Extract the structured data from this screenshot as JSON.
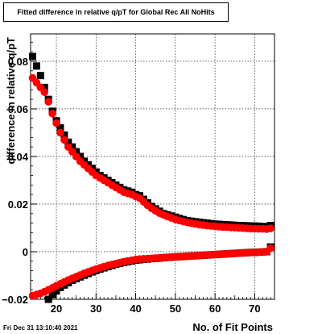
{
  "chart_data": {
    "type": "scatter",
    "title": "Fitted difference in relative q/pT for Global Rec All NoHits",
    "xlabel": "No. of Fit Points",
    "ylabel": "difference in relative q/pT",
    "xlim": [
      13.5,
      75
    ],
    "ylim": [
      -0.02,
      0.0915
    ],
    "x_ticks": [
      20,
      30,
      40,
      50,
      60,
      70
    ],
    "y_ticks": [
      -0.02,
      0,
      0.02,
      0.04,
      0.06,
      0.08
    ],
    "y_tick_labels": [
      "−0.02",
      "0",
      "0.02",
      "0.04",
      "0.06",
      "0.08"
    ],
    "grid": true,
    "series": [
      {
        "color": "#000000",
        "marker": "square",
        "upper_curve": [
          [
            14,
            0.082
          ],
          [
            15,
            0.078
          ],
          [
            16,
            0.074
          ],
          [
            17,
            0.069
          ],
          [
            18,
            0.064
          ],
          [
            19,
            0.059
          ],
          [
            20,
            0.055
          ],
          [
            21,
            0.052
          ],
          [
            22,
            0.049
          ],
          [
            23,
            0.046
          ],
          [
            24,
            0.044
          ],
          [
            25,
            0.042
          ],
          [
            26,
            0.04
          ],
          [
            27,
            0.038
          ],
          [
            28,
            0.0365
          ],
          [
            29,
            0.035
          ],
          [
            30,
            0.0335
          ],
          [
            31,
            0.032
          ],
          [
            32,
            0.031
          ],
          [
            33,
            0.03
          ],
          [
            34,
            0.029
          ],
          [
            35,
            0.028
          ],
          [
            36,
            0.027
          ],
          [
            37,
            0.026
          ],
          [
            38,
            0.0255
          ],
          [
            39,
            0.025
          ],
          [
            40,
            0.024
          ],
          [
            41,
            0.0235
          ],
          [
            42,
            0.022
          ],
          [
            43,
            0.0205
          ],
          [
            44,
            0.019
          ],
          [
            45,
            0.018
          ],
          [
            46,
            0.017
          ],
          [
            47,
            0.016
          ],
          [
            48,
            0.0155
          ],
          [
            49,
            0.015
          ],
          [
            50,
            0.0145
          ],
          [
            51,
            0.014
          ],
          [
            52,
            0.0135
          ],
          [
            53,
            0.013
          ],
          [
            54,
            0.0128
          ],
          [
            55,
            0.0126
          ],
          [
            56,
            0.0124
          ],
          [
            57,
            0.0122
          ],
          [
            58,
            0.012
          ],
          [
            59,
            0.0118
          ],
          [
            60,
            0.0116
          ],
          [
            61,
            0.0115
          ],
          [
            62,
            0.0114
          ],
          [
            63,
            0.0113
          ],
          [
            64,
            0.0112
          ],
          [
            65,
            0.0111
          ],
          [
            66,
            0.011
          ],
          [
            67,
            0.011
          ],
          [
            68,
            0.0109
          ],
          [
            69,
            0.0108
          ],
          [
            70,
            0.0108
          ],
          [
            71,
            0.0107
          ],
          [
            72,
            0.0106
          ],
          [
            73,
            0.0105
          ],
          [
            74,
            0.011
          ]
        ],
        "lower_curve": [
          [
            18,
            -0.02
          ],
          [
            19,
            -0.018
          ],
          [
            20,
            -0.0165
          ],
          [
            21,
            -0.015
          ],
          [
            22,
            -0.014
          ],
          [
            23,
            -0.013
          ],
          [
            24,
            -0.012
          ],
          [
            25,
            -0.0113
          ],
          [
            26,
            -0.0106
          ],
          [
            27,
            -0.0099
          ],
          [
            28,
            -0.0092
          ],
          [
            29,
            -0.0085
          ],
          [
            30,
            -0.0079
          ],
          [
            31,
            -0.0073
          ],
          [
            32,
            -0.0068
          ],
          [
            33,
            -0.0063
          ],
          [
            34,
            -0.0058
          ],
          [
            35,
            -0.0053
          ],
          [
            36,
            -0.0049
          ],
          [
            37,
            -0.0045
          ],
          [
            38,
            -0.0042
          ],
          [
            39,
            -0.0039
          ],
          [
            40,
            -0.0036
          ],
          [
            41,
            -0.0034
          ],
          [
            42,
            -0.0032
          ],
          [
            43,
            -0.0031
          ],
          [
            44,
            -0.0029
          ],
          [
            45,
            -0.0028
          ],
          [
            46,
            -0.0027
          ],
          [
            47,
            -0.0025
          ],
          [
            48,
            -0.0024
          ],
          [
            49,
            -0.0023
          ],
          [
            50,
            -0.0022
          ],
          [
            51,
            -0.0021
          ],
          [
            52,
            -0.002
          ],
          [
            53,
            -0.0019
          ],
          [
            54,
            -0.0018
          ],
          [
            55,
            -0.0017
          ],
          [
            56,
            -0.0016
          ],
          [
            57,
            -0.0015
          ],
          [
            58,
            -0.0014
          ],
          [
            59,
            -0.0013
          ],
          [
            60,
            -0.0012
          ],
          [
            61,
            -0.0011
          ],
          [
            62,
            -0.001
          ],
          [
            63,
            -0.0009
          ],
          [
            64,
            -0.0008
          ],
          [
            65,
            -0.0007
          ],
          [
            66,
            -0.0006
          ],
          [
            67,
            -0.0005
          ],
          [
            68,
            -0.0004
          ],
          [
            69,
            -0.0003
          ],
          [
            70,
            -0.0003
          ],
          [
            71,
            -0.0002
          ],
          [
            72,
            -0.0001
          ],
          [
            73,
            0.0
          ],
          [
            74,
            0.002
          ]
        ]
      },
      {
        "color": "#ff0000",
        "marker": "circle",
        "upper_curve": [
          [
            14,
            0.073
          ],
          [
            15,
            0.071
          ],
          [
            16,
            0.069
          ],
          [
            17,
            0.067
          ],
          [
            18,
            0.063
          ],
          [
            19,
            0.058
          ],
          [
            20,
            0.054
          ],
          [
            21,
            0.05
          ],
          [
            22,
            0.047
          ],
          [
            23,
            0.044
          ],
          [
            24,
            0.042
          ],
          [
            25,
            0.04
          ],
          [
            26,
            0.038
          ],
          [
            27,
            0.0365
          ],
          [
            28,
            0.035
          ],
          [
            29,
            0.0335
          ],
          [
            30,
            0.032
          ],
          [
            31,
            0.031
          ],
          [
            32,
            0.03
          ],
          [
            33,
            0.029
          ],
          [
            34,
            0.028
          ],
          [
            35,
            0.027
          ],
          [
            36,
            0.026
          ],
          [
            37,
            0.025
          ],
          [
            38,
            0.0245
          ],
          [
            39,
            0.024
          ],
          [
            40,
            0.0232
          ],
          [
            41,
            0.0225
          ],
          [
            42,
            0.021
          ],
          [
            43,
            0.0195
          ],
          [
            44,
            0.0182
          ],
          [
            45,
            0.0172
          ],
          [
            46,
            0.0162
          ],
          [
            47,
            0.0155
          ],
          [
            48,
            0.0148
          ],
          [
            49,
            0.0142
          ],
          [
            50,
            0.0136
          ],
          [
            51,
            0.0131
          ],
          [
            52,
            0.0127
          ],
          [
            53,
            0.0123
          ],
          [
            54,
            0.012
          ],
          [
            55,
            0.0117
          ],
          [
            56,
            0.0114
          ],
          [
            57,
            0.0112
          ],
          [
            58,
            0.011
          ],
          [
            59,
            0.0108
          ],
          [
            60,
            0.0107
          ],
          [
            61,
            0.0105
          ],
          [
            62,
            0.0104
          ],
          [
            63,
            0.0103
          ],
          [
            64,
            0.0102
          ],
          [
            65,
            0.0101
          ],
          [
            66,
            0.01
          ],
          [
            67,
            0.0099
          ],
          [
            68,
            0.0098
          ],
          [
            69,
            0.0097
          ],
          [
            70,
            0.0097
          ],
          [
            71,
            0.0096
          ],
          [
            72,
            0.0096
          ],
          [
            73,
            0.0095
          ],
          [
            74,
            0.0098
          ]
        ],
        "lower_curve": [
          [
            14,
            -0.0185
          ],
          [
            15,
            -0.018
          ],
          [
            16,
            -0.0175
          ],
          [
            17,
            -0.0168
          ],
          [
            18,
            -0.016
          ],
          [
            19,
            -0.0152
          ],
          [
            20,
            -0.0143
          ],
          [
            21,
            -0.0135
          ],
          [
            22,
            -0.0127
          ],
          [
            23,
            -0.0119
          ],
          [
            24,
            -0.0112
          ],
          [
            25,
            -0.0105
          ],
          [
            26,
            -0.0098
          ],
          [
            27,
            -0.0091
          ],
          [
            28,
            -0.0085
          ],
          [
            29,
            -0.0079
          ],
          [
            30,
            -0.0073
          ],
          [
            31,
            -0.0068
          ],
          [
            32,
            -0.0063
          ],
          [
            33,
            -0.0058
          ],
          [
            34,
            -0.0054
          ],
          [
            35,
            -0.005
          ],
          [
            36,
            -0.0046
          ],
          [
            37,
            -0.0042
          ],
          [
            38,
            -0.0039
          ],
          [
            39,
            -0.0036
          ],
          [
            40,
            -0.0033
          ],
          [
            41,
            -0.0031
          ],
          [
            42,
            -0.003
          ],
          [
            43,
            -0.0029
          ],
          [
            44,
            -0.0028
          ],
          [
            45,
            -0.0027
          ],
          [
            46,
            -0.0026
          ],
          [
            47,
            -0.0025
          ],
          [
            48,
            -0.0024
          ],
          [
            49,
            -0.0023
          ],
          [
            50,
            -0.0022
          ],
          [
            51,
            -0.0021
          ],
          [
            52,
            -0.002
          ],
          [
            53,
            -0.0019
          ],
          [
            54,
            -0.0018
          ],
          [
            55,
            -0.0017
          ],
          [
            56,
            -0.0016
          ],
          [
            57,
            -0.0015
          ],
          [
            58,
            -0.0014
          ],
          [
            59,
            -0.0013
          ],
          [
            60,
            -0.0012
          ],
          [
            61,
            -0.0011
          ],
          [
            62,
            -0.001
          ],
          [
            63,
            -0.0009
          ],
          [
            64,
            -0.0008
          ],
          [
            65,
            -0.0007
          ],
          [
            66,
            -0.0006
          ],
          [
            67,
            -0.0005
          ],
          [
            68,
            -0.0004
          ],
          [
            69,
            -0.0003
          ],
          [
            70,
            -0.0003
          ],
          [
            71,
            -0.0002
          ],
          [
            72,
            -0.0001
          ],
          [
            73,
            0.0
          ],
          [
            74,
            0.0015
          ]
        ]
      }
    ]
  },
  "footer": {
    "timestamp": "Fri Dec 31 13:10:40 2021"
  }
}
